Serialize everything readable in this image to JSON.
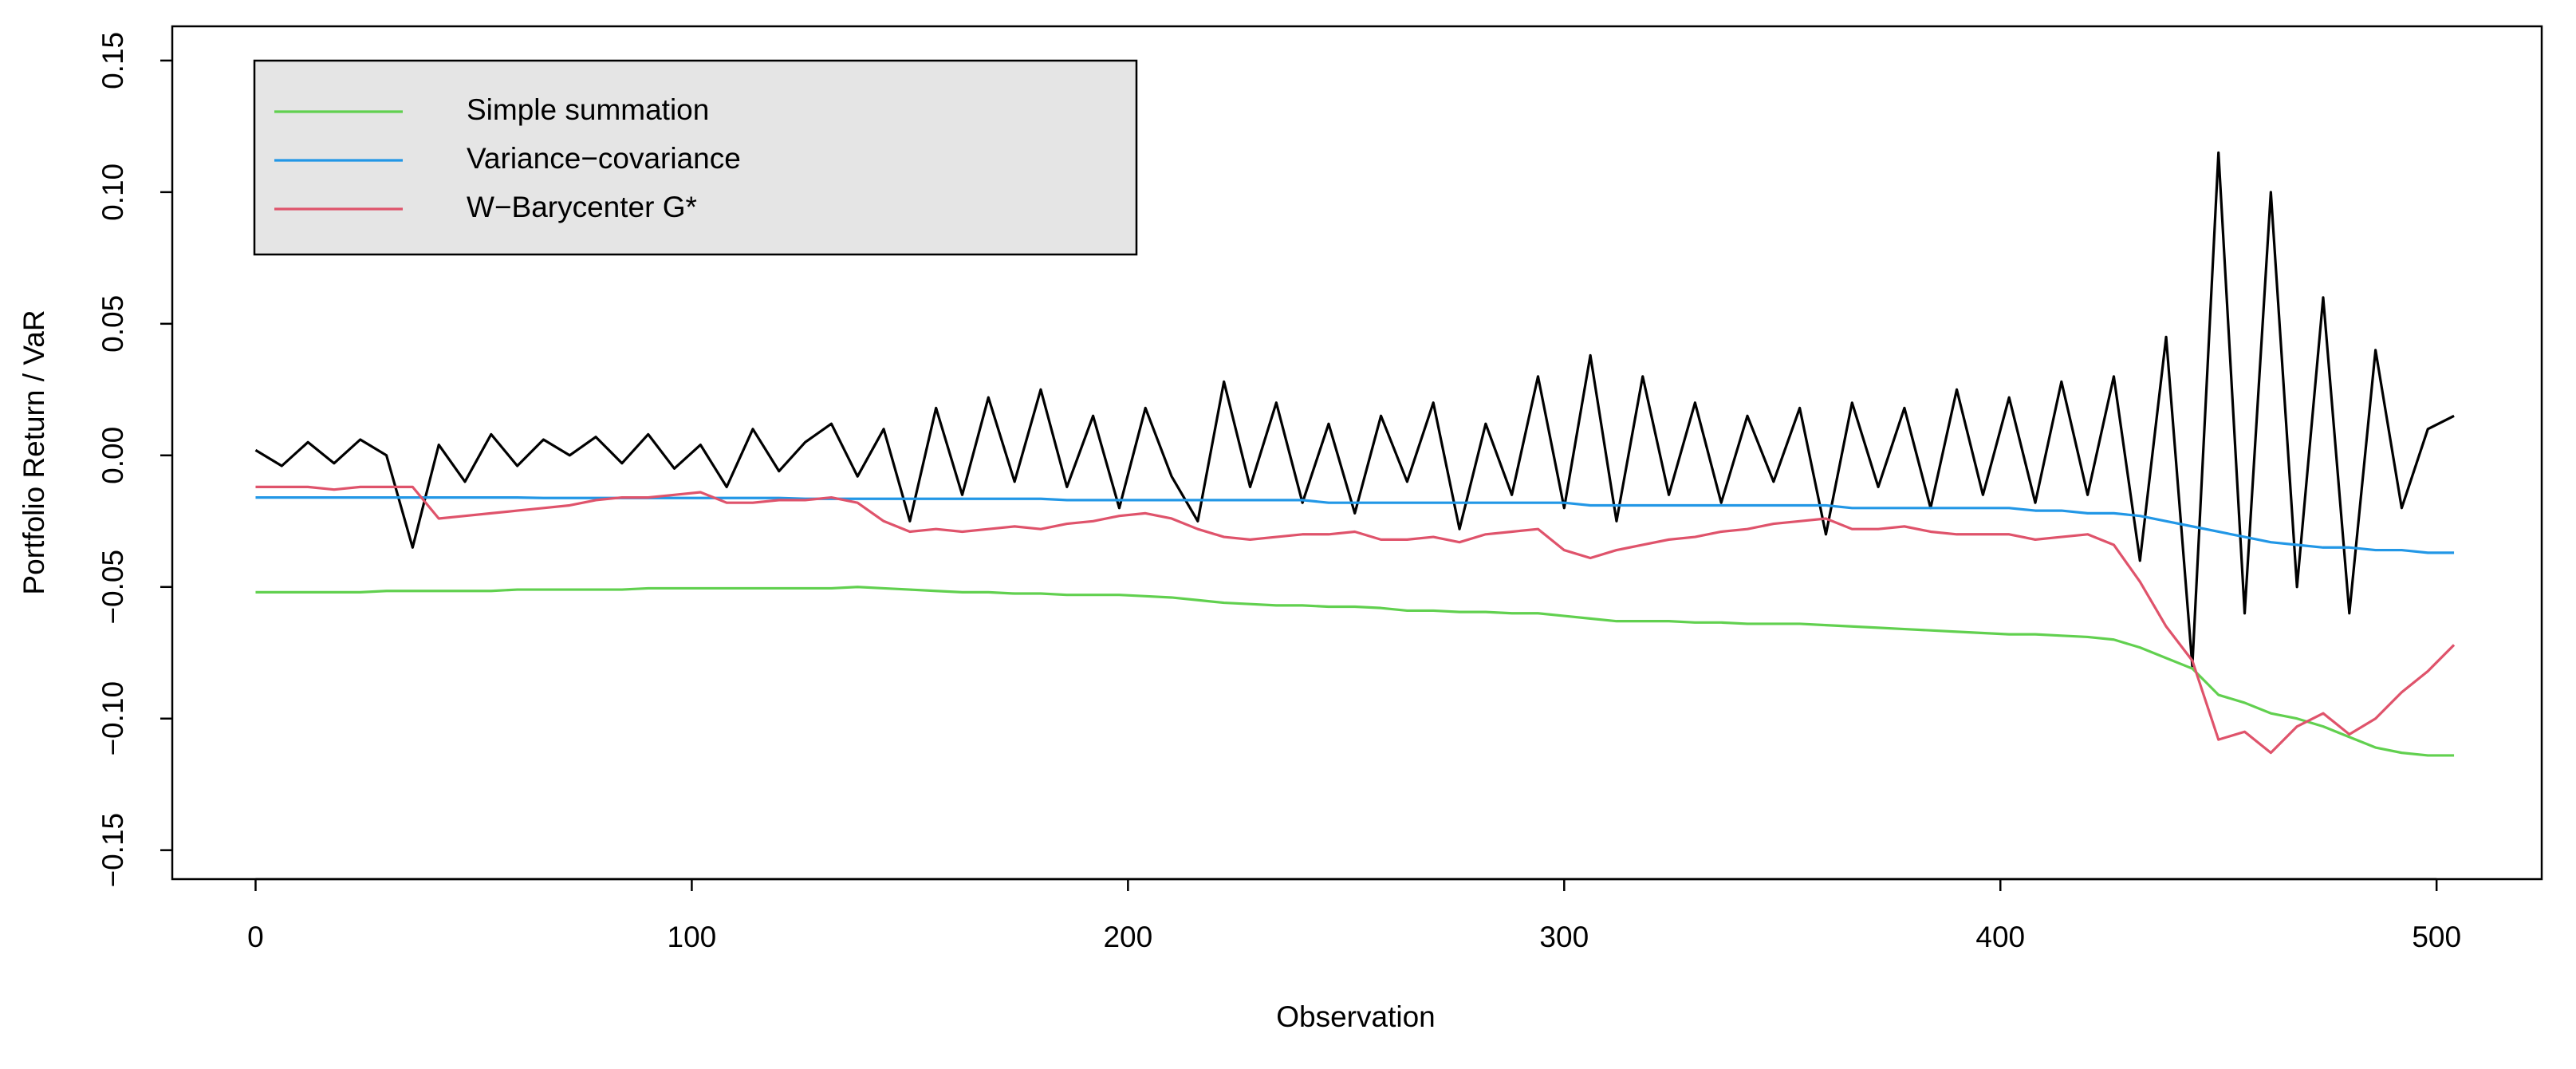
{
  "chart_data": {
    "type": "line",
    "x_label": "Observation",
    "y_label": "Portfolio Return / VaR",
    "x": [
      0,
      6,
      12,
      18,
      24,
      30,
      36,
      42,
      48,
      54,
      60,
      66,
      72,
      78,
      84,
      90,
      96,
      102,
      108,
      114,
      120,
      126,
      132,
      138,
      144,
      150,
      156,
      162,
      168,
      174,
      180,
      186,
      192,
      198,
      204,
      210,
      216,
      222,
      228,
      234,
      240,
      246,
      252,
      258,
      264,
      270,
      276,
      282,
      288,
      294,
      300,
      306,
      312,
      318,
      324,
      330,
      336,
      342,
      348,
      354,
      360,
      366,
      372,
      378,
      384,
      390,
      396,
      402,
      408,
      414,
      420,
      426,
      432,
      438,
      444,
      450,
      456,
      462,
      468,
      474,
      480,
      486,
      492,
      498,
      504
    ],
    "series": [
      {
        "color": "#000000",
        "values": [
          0.002,
          -0.004,
          0.005,
          -0.003,
          0.006,
          0.0,
          -0.035,
          0.004,
          -0.01,
          0.008,
          -0.004,
          0.006,
          0.0,
          0.007,
          -0.003,
          0.008,
          -0.005,
          0.004,
          -0.012,
          0.01,
          -0.006,
          0.005,
          0.012,
          -0.008,
          0.01,
          -0.025,
          0.018,
          -0.015,
          0.022,
          -0.01,
          0.025,
          -0.012,
          0.015,
          -0.02,
          0.018,
          -0.008,
          -0.025,
          0.028,
          -0.012,
          0.02,
          -0.018,
          0.012,
          -0.022,
          0.015,
          -0.01,
          0.02,
          -0.028,
          0.012,
          -0.015,
          0.03,
          -0.02,
          0.038,
          -0.025,
          0.03,
          -0.015,
          0.02,
          -0.018,
          0.015,
          -0.01,
          0.018,
          -0.03,
          0.02,
          -0.012,
          0.018,
          -0.02,
          0.025,
          -0.015,
          0.022,
          -0.018,
          0.028,
          -0.015,
          0.03,
          -0.04,
          0.045,
          -0.08,
          0.115,
          -0.06,
          0.1,
          -0.05,
          0.06,
          -0.06,
          0.04,
          -0.02,
          0.01,
          0.015
        ]
      },
      {
        "name": "Simple summation",
        "color": "#61d04f",
        "values": [
          -0.052,
          -0.052,
          -0.052,
          -0.052,
          -0.052,
          -0.0515,
          -0.0515,
          -0.0515,
          -0.0515,
          -0.0515,
          -0.051,
          -0.051,
          -0.051,
          -0.051,
          -0.051,
          -0.0505,
          -0.0505,
          -0.0505,
          -0.0505,
          -0.0505,
          -0.0505,
          -0.0505,
          -0.0505,
          -0.05,
          -0.0505,
          -0.051,
          -0.0515,
          -0.052,
          -0.052,
          -0.0525,
          -0.0525,
          -0.053,
          -0.053,
          -0.053,
          -0.0535,
          -0.054,
          -0.055,
          -0.056,
          -0.0565,
          -0.057,
          -0.057,
          -0.0575,
          -0.0575,
          -0.058,
          -0.059,
          -0.059,
          -0.0595,
          -0.0595,
          -0.06,
          -0.06,
          -0.061,
          -0.062,
          -0.063,
          -0.063,
          -0.063,
          -0.0635,
          -0.0635,
          -0.064,
          -0.064,
          -0.064,
          -0.0645,
          -0.065,
          -0.0655,
          -0.066,
          -0.0665,
          -0.067,
          -0.0675,
          -0.068,
          -0.068,
          -0.0685,
          -0.069,
          -0.07,
          -0.073,
          -0.077,
          -0.081,
          -0.091,
          -0.094,
          -0.098,
          -0.1,
          -0.103,
          -0.107,
          -0.111,
          -0.113,
          -0.114,
          -0.114
        ]
      },
      {
        "name": "Variance−covariance",
        "color": "#2297e6",
        "values": [
          -0.016,
          -0.016,
          -0.016,
          -0.016,
          -0.016,
          -0.016,
          -0.016,
          -0.016,
          -0.016,
          -0.016,
          -0.016,
          -0.0162,
          -0.0162,
          -0.0162,
          -0.0162,
          -0.0162,
          -0.0162,
          -0.0162,
          -0.0162,
          -0.0162,
          -0.0162,
          -0.0165,
          -0.0165,
          -0.0165,
          -0.0165,
          -0.0165,
          -0.0165,
          -0.0165,
          -0.0165,
          -0.0165,
          -0.0165,
          -0.017,
          -0.017,
          -0.017,
          -0.017,
          -0.017,
          -0.017,
          -0.017,
          -0.017,
          -0.017,
          -0.017,
          -0.018,
          -0.018,
          -0.018,
          -0.018,
          -0.018,
          -0.018,
          -0.018,
          -0.018,
          -0.018,
          -0.018,
          -0.019,
          -0.019,
          -0.019,
          -0.019,
          -0.019,
          -0.019,
          -0.019,
          -0.019,
          -0.019,
          -0.019,
          -0.02,
          -0.02,
          -0.02,
          -0.02,
          -0.02,
          -0.02,
          -0.02,
          -0.021,
          -0.021,
          -0.022,
          -0.022,
          -0.023,
          -0.025,
          -0.027,
          -0.029,
          -0.031,
          -0.033,
          -0.034,
          -0.035,
          -0.035,
          -0.036,
          -0.036,
          -0.037,
          -0.037
        ]
      },
      {
        "name": "W−Barycenter G*",
        "color": "#df536b",
        "values": [
          -0.012,
          -0.012,
          -0.012,
          -0.013,
          -0.012,
          -0.012,
          -0.012,
          -0.024,
          -0.023,
          -0.022,
          -0.021,
          -0.02,
          -0.019,
          -0.017,
          -0.016,
          -0.016,
          -0.015,
          -0.014,
          -0.018,
          -0.018,
          -0.017,
          -0.017,
          -0.016,
          -0.018,
          -0.025,
          -0.029,
          -0.028,
          -0.029,
          -0.028,
          -0.027,
          -0.028,
          -0.026,
          -0.025,
          -0.023,
          -0.022,
          -0.024,
          -0.028,
          -0.031,
          -0.032,
          -0.031,
          -0.03,
          -0.03,
          -0.029,
          -0.032,
          -0.032,
          -0.031,
          -0.033,
          -0.03,
          -0.029,
          -0.028,
          -0.036,
          -0.039,
          -0.036,
          -0.034,
          -0.032,
          -0.031,
          -0.029,
          -0.028,
          -0.026,
          -0.025,
          -0.024,
          -0.028,
          -0.028,
          -0.027,
          -0.029,
          -0.03,
          -0.03,
          -0.03,
          -0.032,
          -0.031,
          -0.03,
          -0.034,
          -0.048,
          -0.065,
          -0.078,
          -0.108,
          -0.105,
          -0.113,
          -0.103,
          -0.098,
          -0.106,
          -0.1,
          -0.09,
          -0.082,
          -0.072
        ]
      }
    ],
    "xlim": [
      -19.1,
      524.1
    ],
    "ylim": [
      -0.161,
      0.163
    ],
    "xticks": [
      0,
      100,
      200,
      300,
      400,
      500
    ],
    "yticks": [
      {
        "value": -0.15,
        "label": "−0.15"
      },
      {
        "value": -0.1,
        "label": "−0.10"
      },
      {
        "value": -0.05,
        "label": "−0.05"
      },
      {
        "value": 0,
        "label": "0.00"
      },
      0.05,
      {
        "value": 0.1,
        "label": "0.10"
      },
      0.15
    ],
    "legend": "top-left",
    "legend_fill": "#e5e5e5"
  }
}
